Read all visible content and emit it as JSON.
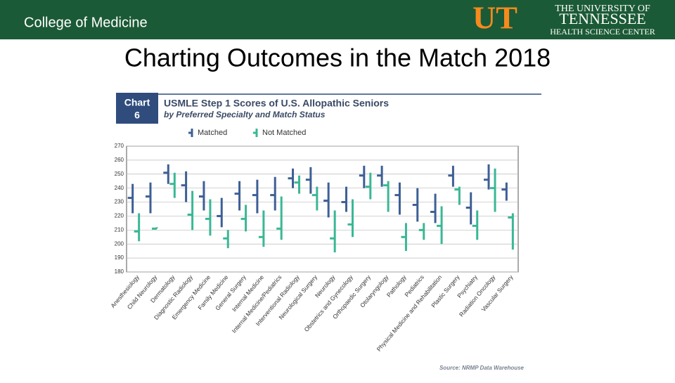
{
  "header": {
    "section": "College of Medicine",
    "logo_mark": "UT",
    "logo_line1": "THE UNIVERSITY OF",
    "logo_line2": "TENNESSEE",
    "logo_line3": "HEALTH SCIENCE CENTER"
  },
  "slide_title": "Charting Outcomes in the Match 2018",
  "chart_data": {
    "type": "range",
    "label": "Chart",
    "number": "6",
    "title": "USMLE Step 1 Scores of U.S. Allopathic Seniors",
    "subtitle": "by Preferred Specialty and Match Status",
    "source": "Source: NRMP Data Warehouse",
    "categories": [
      "Anesthesiology",
      "Child Neurology",
      "Dermatology",
      "Diagnostic Radiology",
      "Emergency Medicine",
      "Family Medicine",
      "General Surgery",
      "Internal Medicine",
      "Internal Medicine/Pediatrics",
      "Interventional Radiology",
      "Neurological Surgery",
      "Neurology",
      "Obstetrics and Gynecology",
      "Orthopaedic Surgery",
      "Otolaryngology",
      "Pathology",
      "Pediatrics",
      "Physical Medicine and Rehabilitation",
      "Plastic Surgery",
      "Psychiatry",
      "Radiation Oncology",
      "Vascular Surgery"
    ],
    "series": [
      {
        "name": "Matched",
        "color": "#3d5f95",
        "values": [
          233,
          234,
          251,
          242,
          234,
          220,
          236,
          235,
          235,
          247,
          246,
          231,
          230,
          249,
          249,
          235,
          228,
          223,
          249,
          226,
          246,
          239
        ],
        "low": [
          222,
          222,
          243,
          230,
          224,
          212,
          224,
          222,
          224,
          240,
          236,
          219,
          223,
          240,
          241,
          221,
          216,
          215,
          241,
          214,
          239,
          231
        ],
        "high": [
          243,
          244,
          257,
          252,
          245,
          233,
          245,
          246,
          248,
          254,
          255,
          244,
          241,
          256,
          256,
          244,
          240,
          236,
          256,
          237,
          257,
          244
        ]
      },
      {
        "name": "Not Matched",
        "color": "#3ab795",
        "values": [
          209,
          211,
          243,
          221,
          218,
          204,
          218,
          205,
          211,
          244,
          235,
          204,
          214,
          241,
          242,
          205,
          210,
          213,
          239,
          213,
          240,
          219
        ],
        "low": [
          202,
          211,
          233,
          210,
          206,
          197,
          209,
          198,
          203,
          236,
          224,
          194,
          205,
          232,
          223,
          195,
          203,
          200,
          228,
          203,
          223,
          196
        ],
        "high": [
          222,
          212,
          251,
          238,
          232,
          210,
          228,
          224,
          234,
          249,
          241,
          224,
          232,
          251,
          245,
          215,
          215,
          227,
          241,
          224,
          254,
          222
        ]
      }
    ],
    "ylim": [
      180,
      270
    ],
    "yticks": [
      180,
      190,
      200,
      210,
      220,
      230,
      240,
      250,
      260,
      270
    ],
    "grid": true
  }
}
